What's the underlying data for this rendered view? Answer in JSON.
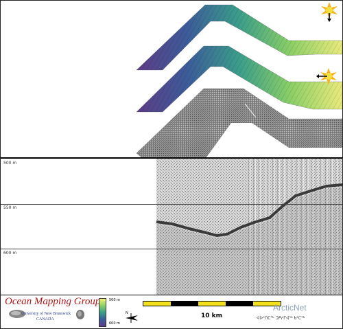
{
  "profile": {
    "depth_labels": [
      "500 m",
      "550 m",
      "600 m"
    ]
  },
  "footer": {
    "logo": {
      "title": "Ocean Mapping Group",
      "university": "University of New Brunswick",
      "country": "CANADA"
    },
    "colorbar": {
      "top_label": "500 m",
      "bottom_label": "600 m",
      "colors": [
        "#f6f07a",
        "#8bcf67",
        "#3b9e8a",
        "#3c5c9a",
        "#5d3c86"
      ]
    },
    "north_arrow_label": "N",
    "scale_bar": {
      "label": "10 km",
      "segment_colors": [
        "#f3e21a",
        "#000000"
      ]
    },
    "arcticnet": {
      "name": "ArcticNet",
      "inuktitut": "ᐊᐅᑦᑎᑕᖅ ᑐᑭᓯᒋᐊᖅ ᑲᑦᑕᖅ"
    }
  },
  "map": {
    "sun_icon_colors": [
      "#f6b21b",
      "#f4e03a"
    ]
  }
}
